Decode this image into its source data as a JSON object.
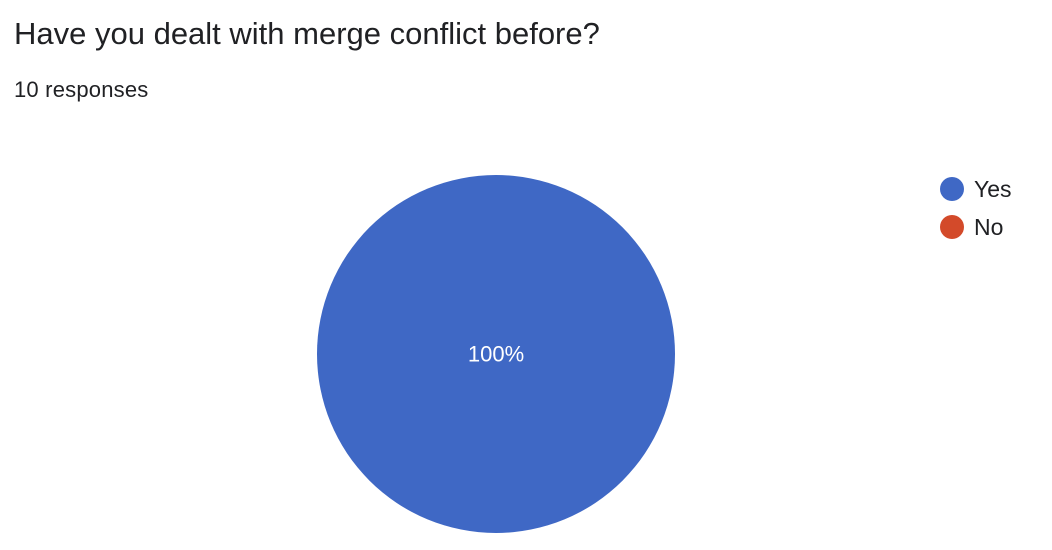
{
  "question": {
    "title": "Have you dealt with merge conflict before?",
    "responses_label": "10 responses"
  },
  "chart_data": {
    "type": "pie",
    "categories": [
      "Yes",
      "No"
    ],
    "values": [
      100,
      0
    ],
    "colors": [
      "#3f68c5",
      "#d34a2a"
    ],
    "data_labels": [
      "100%",
      ""
    ],
    "legend_position": "right"
  }
}
